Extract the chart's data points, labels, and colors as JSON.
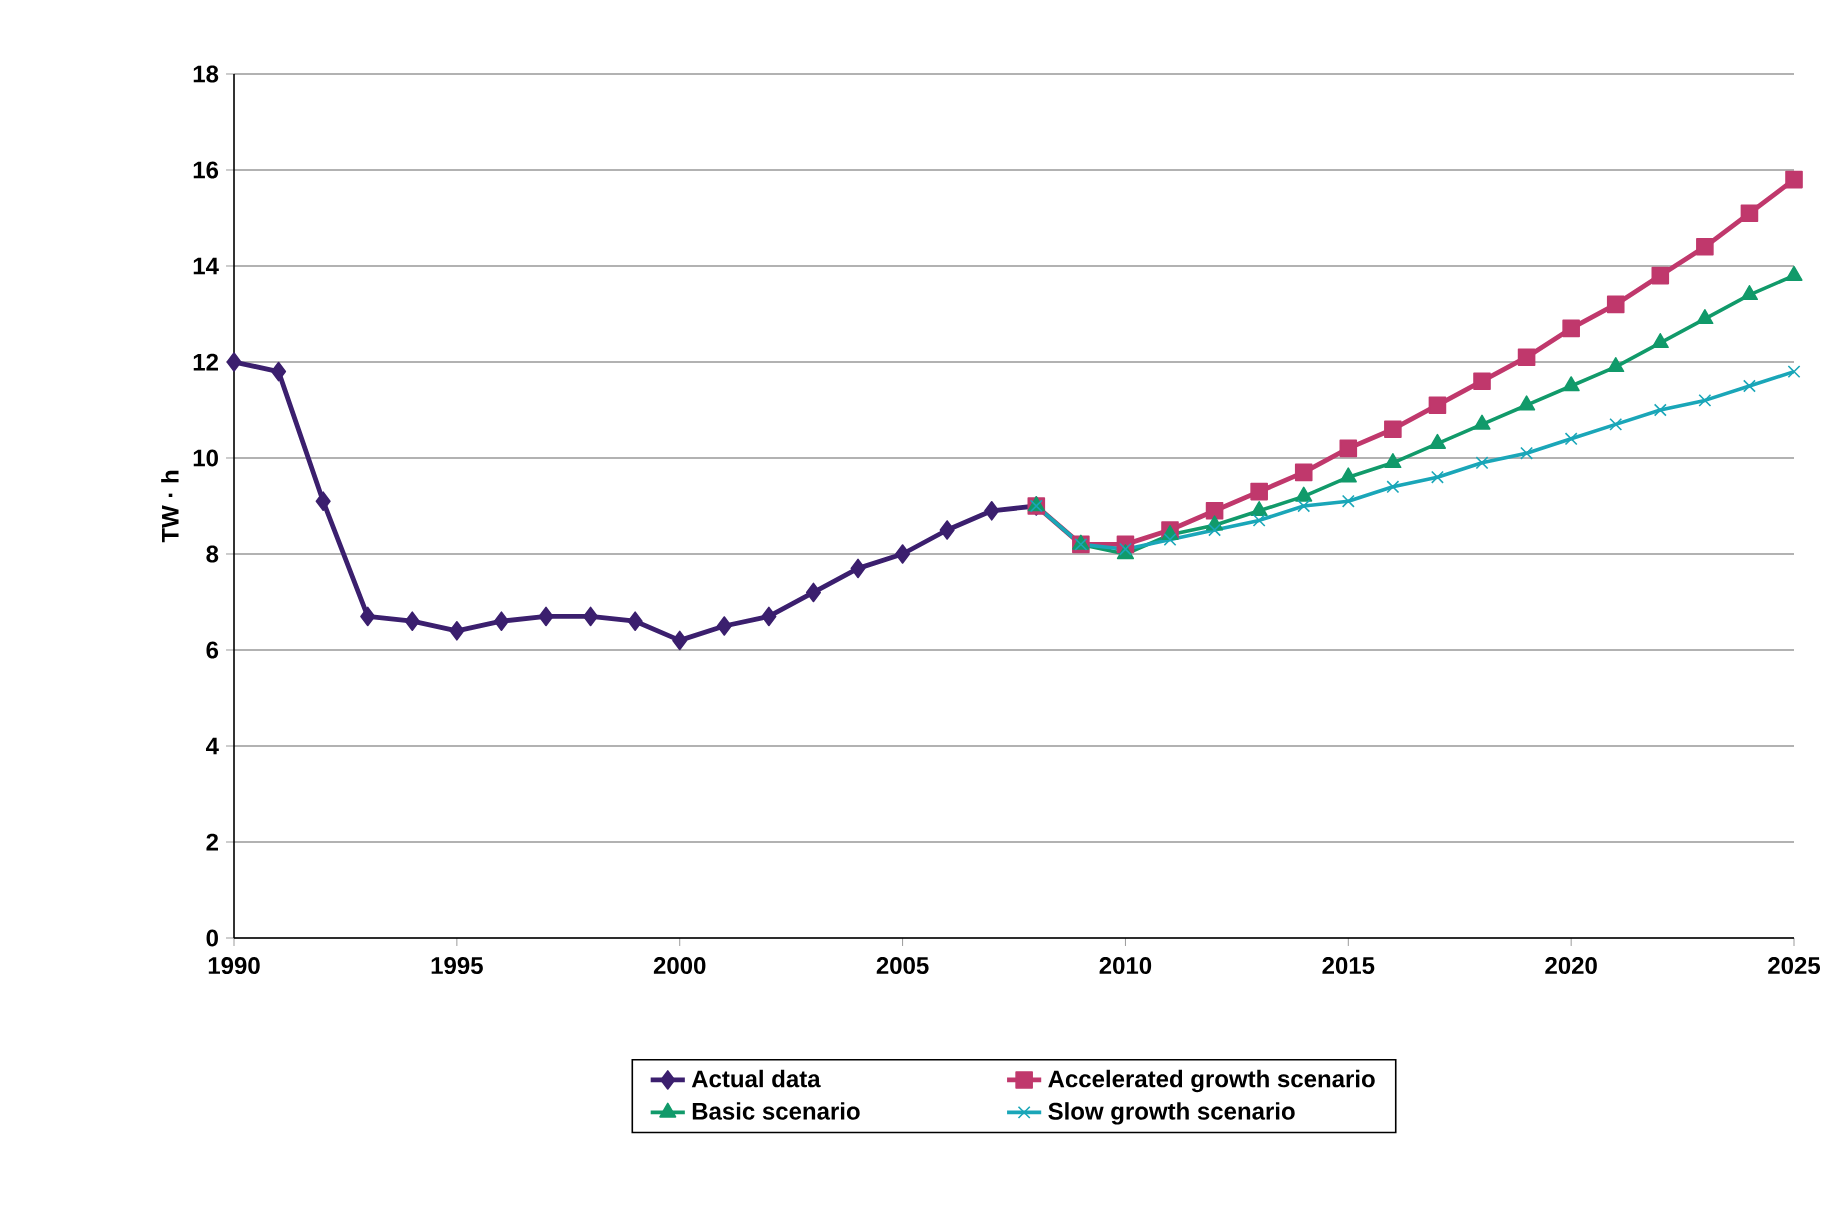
{
  "chart_data": {
    "type": "line",
    "ylabel": "TW · h",
    "xlim": [
      1990,
      2025
    ],
    "xticks": [
      1990,
      1995,
      2000,
      2005,
      2010,
      2015,
      2020,
      2025
    ],
    "ylim": [
      0,
      18
    ],
    "yticks": [
      0,
      2,
      4,
      6,
      8,
      10,
      12,
      14,
      16,
      18
    ],
    "grid": "y",
    "legend": "bottom",
    "series": [
      {
        "name": "Actual data",
        "color": "#3b1f6e",
        "marker": "diamond",
        "x": [
          1990,
          1991,
          1992,
          1993,
          1994,
          1995,
          1996,
          1997,
          1998,
          1999,
          2000,
          2001,
          2002,
          2003,
          2004,
          2005,
          2006,
          2007,
          2008
        ],
        "values": [
          12.0,
          11.8,
          9.1,
          6.7,
          6.6,
          6.4,
          6.6,
          6.7,
          6.7,
          6.6,
          6.2,
          6.5,
          6.7,
          7.2,
          7.7,
          8.0,
          8.5,
          8.9,
          9.0
        ]
      },
      {
        "name": "Accelerated growth scenario",
        "color": "#c0386c",
        "marker": "square",
        "x": [
          2008,
          2009,
          2010,
          2011,
          2012,
          2013,
          2014,
          2015,
          2016,
          2017,
          2018,
          2019,
          2020,
          2021,
          2022,
          2023,
          2024,
          2025
        ],
        "values": [
          9.0,
          8.2,
          8.2,
          8.5,
          8.9,
          9.3,
          9.7,
          10.2,
          10.6,
          11.1,
          11.6,
          12.1,
          12.7,
          13.2,
          13.8,
          14.4,
          15.1,
          15.8
        ]
      },
      {
        "name": "Basic scenario",
        "color": "#119a6a",
        "marker": "triangle",
        "x": [
          2008,
          2009,
          2010,
          2011,
          2012,
          2013,
          2014,
          2015,
          2016,
          2017,
          2018,
          2019,
          2020,
          2021,
          2022,
          2023,
          2024,
          2025
        ],
        "values": [
          9.0,
          8.2,
          8.0,
          8.4,
          8.6,
          8.9,
          9.2,
          9.6,
          9.9,
          10.3,
          10.7,
          11.1,
          11.5,
          11.9,
          12.4,
          12.9,
          13.4,
          13.8
        ]
      },
      {
        "name": "Slow growth scenario",
        "color": "#1aa6b8",
        "marker": "cross",
        "x": [
          2008,
          2009,
          2010,
          2011,
          2012,
          2013,
          2014,
          2015,
          2016,
          2017,
          2018,
          2019,
          2020,
          2021,
          2022,
          2023,
          2024,
          2025
        ],
        "values": [
          9.0,
          8.2,
          8.1,
          8.3,
          8.5,
          8.7,
          9.0,
          9.1,
          9.4,
          9.6,
          9.9,
          10.1,
          10.4,
          10.7,
          11.0,
          11.2,
          11.5,
          11.8
        ]
      }
    ]
  }
}
